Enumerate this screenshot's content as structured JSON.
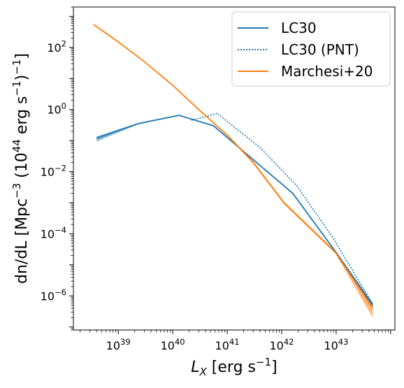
{
  "chart_data": {
    "type": "line",
    "title": "",
    "xlabel": "L_X [erg s^-1]",
    "ylabel": "dn/dL [Mpc^-3 (10^44 erg s^-1)^-1]",
    "xscale": "log",
    "yscale": "log",
    "xlim": [
      1.5e+38,
      1.2e+44
    ],
    "ylim": [
      8e-08,
      2000
    ],
    "xticks": [
      {
        "value": 1e+39,
        "label": "10^39"
      },
      {
        "value": 1e+40,
        "label": "10^40"
      },
      {
        "value": 1e+41,
        "label": "10^41"
      },
      {
        "value": 1e+42,
        "label": "10^42"
      },
      {
        "value": 1e+43,
        "label": "10^43"
      }
    ],
    "yticks": [
      {
        "value": 1e-06,
        "label": "10^-6"
      },
      {
        "value": 0.0001,
        "label": "10^-4"
      },
      {
        "value": 0.01,
        "label": "10^-2"
      },
      {
        "value": 1,
        "label": "10^0"
      },
      {
        "value": 100,
        "label": "10^2"
      }
    ],
    "legend_position": "top-right",
    "series": [
      {
        "name": "LC30",
        "color": "#1f77b4",
        "style": "solid",
        "x": [
          4e+38,
          2.3e+39,
          1.3e+40,
          5.6e+40,
          1.6e+42,
          1e+43,
          4.7e+43
        ],
        "y": [
          0.12,
          0.35,
          0.65,
          0.3,
          0.002,
          2.5e-05,
          5e-07
        ],
        "y_lower": [
          0.095,
          0.33,
          0.63,
          0.29,
          0.0019,
          2.3e-05,
          4e-07
        ],
        "y_upper": [
          0.135,
          0.37,
          0.67,
          0.31,
          0.0021,
          2.7e-05,
          6e-07
        ]
      },
      {
        "name": "LC30 (PNT)",
        "color": "#1f77b4",
        "style": "dotted",
        "x": [
          2.2e+40,
          6.5e+40,
          4e+41,
          1.9e+42,
          8.5e+42,
          4.7e+43
        ],
        "y": [
          0.45,
          0.75,
          0.06,
          0.0035,
          8e-05,
          5.5e-07
        ]
      },
      {
        "name": "Marchesi+20",
        "color": "#ff7f0e",
        "style": "solid",
        "x": [
          3.5e+38,
          1e+39,
          3e+39,
          1e+40,
          3e+40,
          1e+41,
          3e+41,
          1.1e+42,
          9.7e+42,
          4.7e+43
        ],
        "y": [
          550,
          150,
          35,
          6,
          1,
          0.15,
          0.02,
          0.001,
          2.5e-05,
          4e-07
        ],
        "y_lower": [
          550,
          150,
          35,
          6,
          1,
          0.14,
          0.018,
          0.0009,
          2.3e-05,
          2e-07
        ],
        "y_upper": [
          550,
          150,
          35,
          6,
          1,
          0.16,
          0.022,
          0.0011,
          2.8e-05,
          5.5e-07
        ]
      }
    ]
  }
}
